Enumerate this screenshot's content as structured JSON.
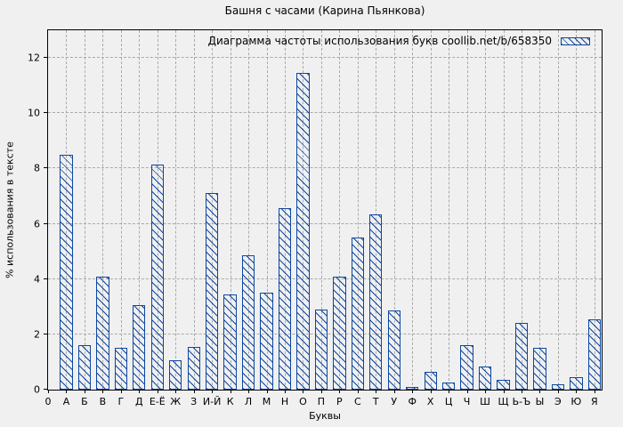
{
  "colors": {
    "background": "#f0f0f0",
    "bar": "#0d47a1",
    "grid": "#a9a9a9",
    "axis": "#000000"
  },
  "chart_data": {
    "type": "bar",
    "title": "Башня с часами (Карина Пьянкова)",
    "legend": "Диаграмма частоты использования букв coollib.net/b/658350",
    "legend_position": "top-right-inside",
    "xlabel": "Буквы",
    "ylabel": "% использования в тексте",
    "x_origin_label": "0",
    "grid": true,
    "categories": [
      "А",
      "Б",
      "В",
      "Г",
      "Д",
      "Е-Ё",
      "Ж",
      "З",
      "И-Й",
      "К",
      "Л",
      "М",
      "Н",
      "О",
      "П",
      "Р",
      "С",
      "Т",
      "У",
      "Ф",
      "Х",
      "Ц",
      "Ч",
      "Ш",
      "Щ",
      "Ь-Ъ",
      "Ы",
      "Э",
      "Ю",
      "Я"
    ],
    "values": [
      8.5,
      1.6,
      4.1,
      1.5,
      3.05,
      8.15,
      1.05,
      1.55,
      7.1,
      3.45,
      4.85,
      3.5,
      6.55,
      11.45,
      2.9,
      4.1,
      5.5,
      6.35,
      2.85,
      0.1,
      0.65,
      0.25,
      1.6,
      0.85,
      0.35,
      2.4,
      1.5,
      0.2,
      0.45,
      2.55
    ],
    "yticks": [
      0,
      2,
      4,
      6,
      8,
      10,
      12
    ],
    "ylim": [
      0,
      13
    ],
    "xlim": [
      0,
      30.4
    ],
    "bar_width_slots": 0.7
  }
}
